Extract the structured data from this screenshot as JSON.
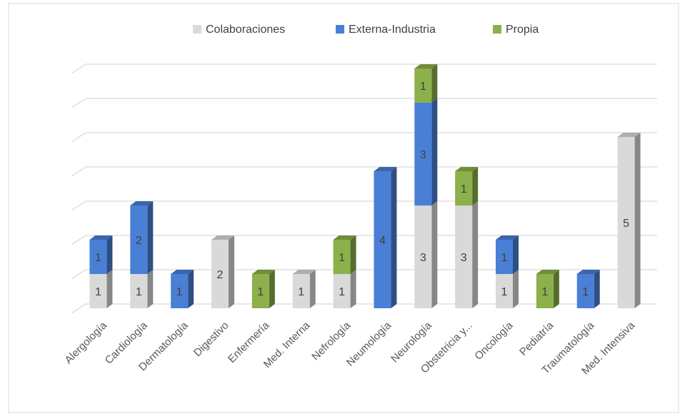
{
  "chart_data": {
    "type": "stacked-bar-3d",
    "categories": [
      "Alergología",
      "Cardiología",
      "Dermatología",
      "Digestivo",
      "Enfermería",
      "Med. Interna",
      "Nefrología",
      "Neumología",
      "Neurología",
      "Obstetricia y...",
      "Oncología",
      "Pediatría",
      "Traumatología",
      "Med. Intensiva"
    ],
    "series": [
      {
        "name": "Colaboraciones",
        "color": "#d9d9d9",
        "values": [
          1,
          1,
          null,
          2,
          null,
          1,
          1,
          null,
          3,
          3,
          1,
          null,
          null,
          5
        ]
      },
      {
        "name": "Externa-Industria",
        "color": "#4a7fd6",
        "values": [
          1,
          2,
          1,
          null,
          null,
          null,
          null,
          4,
          3,
          null,
          1,
          null,
          1,
          null
        ]
      },
      {
        "name": "Propia",
        "color": "#8cb04a",
        "values": [
          null,
          null,
          null,
          null,
          1,
          null,
          1,
          null,
          1,
          1,
          null,
          1,
          null,
          null
        ]
      }
    ],
    "ylim": [
      0,
      7
    ],
    "yticks": [
      0,
      1,
      2,
      3,
      4,
      5,
      6,
      7
    ],
    "grid": true,
    "legend": "top"
  }
}
